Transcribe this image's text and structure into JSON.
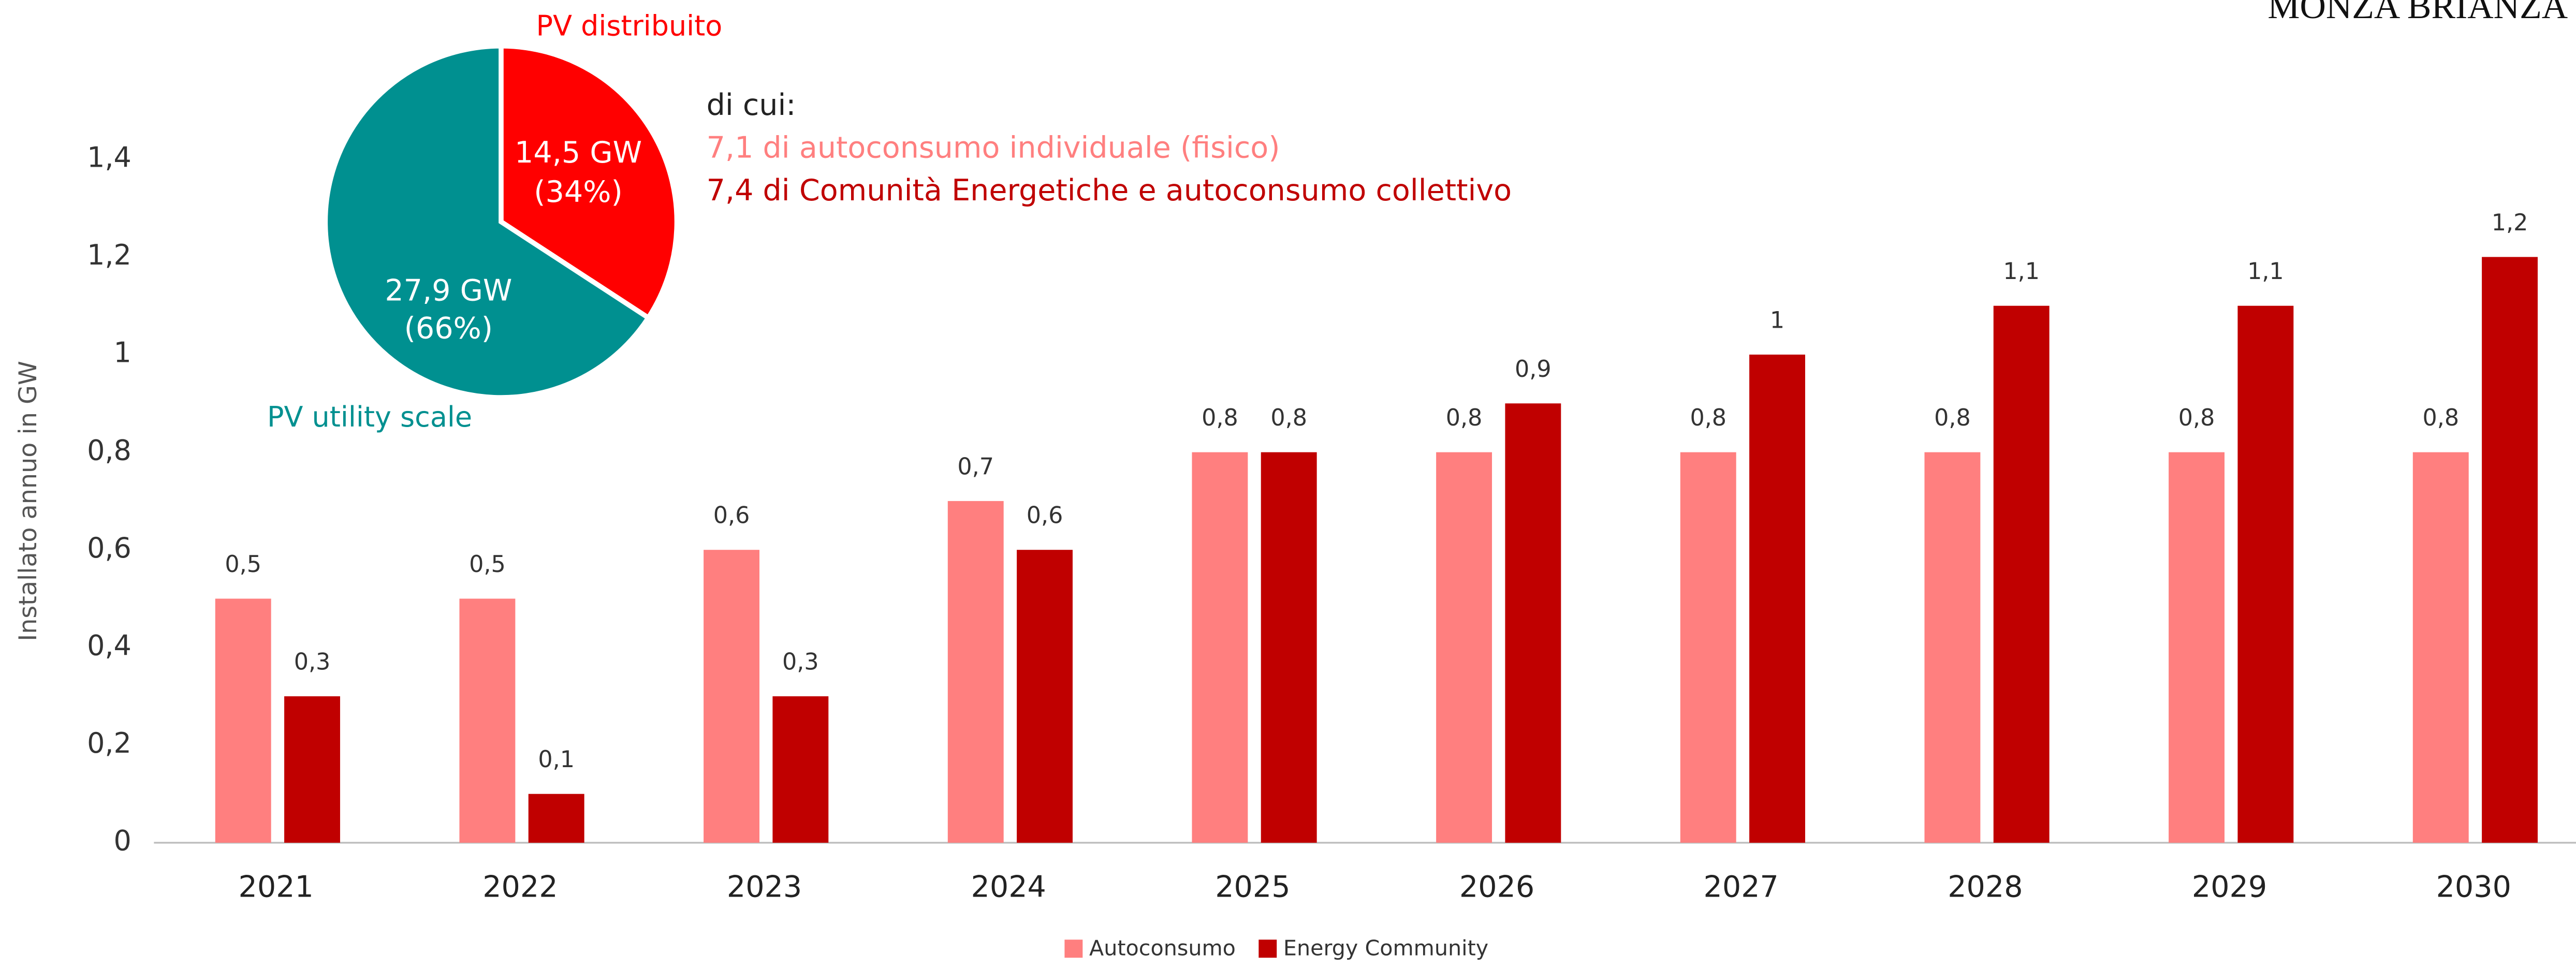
{
  "chart_data": [
    {
      "type": "pie",
      "categories": [
        "PV distribuito",
        "PV utility scale"
      ],
      "values": [
        14.5,
        27.9
      ],
      "value_labels": [
        "14,5 GW",
        "27,9 GW"
      ],
      "shares": [
        34,
        66
      ],
      "share_labels": [
        "(34%)",
        "(66%)"
      ],
      "colors": [
        "#ff0000",
        "#009090"
      ],
      "annotations": [
        "di cui:",
        "7,1 di autoconsumo individuale (fisico)",
        "7,4 di Comunità Energetiche e autoconsumo collettivo"
      ],
      "annotation_colors": [
        "#222222",
        "#ff7f7f",
        "#c00000"
      ]
    },
    {
      "type": "bar",
      "y_label": "Installato annuo in GW",
      "categories": [
        "2021",
        "2022",
        "2023",
        "2024",
        "2025",
        "2026",
        "2027",
        "2028",
        "2029",
        "2030"
      ],
      "series": [
        {
          "name": "Autoconsumo",
          "color": "#ff7f7f",
          "values": [
            0.5,
            0.5,
            0.6,
            0.7,
            0.8,
            0.8,
            0.8,
            0.8,
            0.8,
            0.8
          ],
          "value_labels": [
            "0,5",
            "0,5",
            "0,6",
            "0,7",
            "0,8",
            "0,8",
            "0,8",
            "0,8",
            "0,8",
            "0,8"
          ]
        },
        {
          "name": "Energy Community",
          "color": "#c00000",
          "values": [
            0.3,
            0.1,
            0.3,
            0.6,
            0.8,
            0.9,
            1,
            1.1,
            1.1,
            1.2
          ],
          "value_labels": [
            "0,3",
            "0,1",
            "0,3",
            "0,6",
            "0,8",
            "0,9",
            "1",
            "1,1",
            "1,1",
            "1,2"
          ]
        }
      ],
      "ylim": [
        0,
        1.4
      ],
      "yticks": [
        0,
        {
          "value": 0.2,
          "label": "0,2"
        },
        {
          "value": 0.4,
          "label": "0,4"
        },
        {
          "value": 0.6,
          "label": "0,6"
        },
        {
          "value": 0.8,
          "label": "0,8"
        },
        1,
        {
          "value": 1.2,
          "label": "1,2"
        },
        {
          "value": 1.4,
          "label": "1,4"
        }
      ],
      "grid": false,
      "legend": "bottom"
    }
  ],
  "header": {
    "logo_text": "MONZA BRIANZA"
  }
}
